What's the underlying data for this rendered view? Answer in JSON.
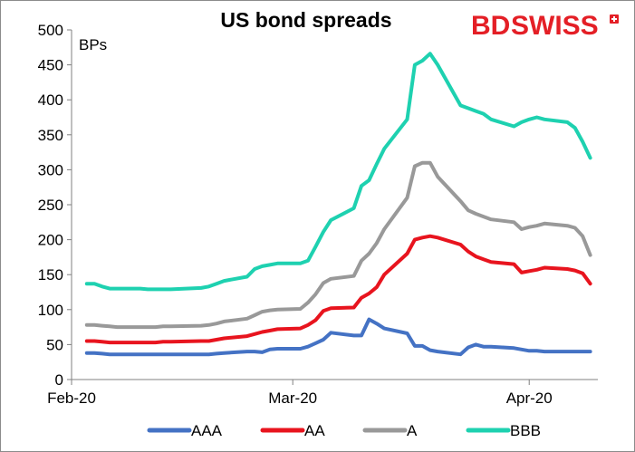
{
  "brand": {
    "logo_text_left": "BD",
    "logo_text_right": "SWISS",
    "logo_color": "#e41f26"
  },
  "chart_data": {
    "type": "line",
    "title": "US bond spreads",
    "unit_label": "BPs",
    "ylim": [
      0,
      500
    ],
    "y_ticks": [
      "0",
      "50",
      "100",
      "150",
      "200",
      "250",
      "300",
      "350",
      "400",
      "450",
      "500"
    ],
    "x_ticks": [
      "Feb-20",
      "Mar-20",
      "Apr-20"
    ],
    "x": [
      "2020-02-03",
      "2020-02-04",
      "2020-02-05",
      "2020-02-06",
      "2020-02-07",
      "2020-02-10",
      "2020-02-11",
      "2020-02-12",
      "2020-02-13",
      "2020-02-14",
      "2020-02-18",
      "2020-02-19",
      "2020-02-20",
      "2020-02-21",
      "2020-02-24",
      "2020-02-25",
      "2020-02-26",
      "2020-02-27",
      "2020-02-28",
      "2020-03-02",
      "2020-03-03",
      "2020-03-04",
      "2020-03-05",
      "2020-03-06",
      "2020-03-09",
      "2020-03-10",
      "2020-03-11",
      "2020-03-12",
      "2020-03-13",
      "2020-03-16",
      "2020-03-17",
      "2020-03-18",
      "2020-03-19",
      "2020-03-20",
      "2020-03-23",
      "2020-03-24",
      "2020-03-25",
      "2020-03-26",
      "2020-03-27",
      "2020-03-30",
      "2020-03-31",
      "2020-04-01",
      "2020-04-02",
      "2020-04-03",
      "2020-04-06",
      "2020-04-07",
      "2020-04-08",
      "2020-04-09"
    ],
    "series": [
      {
        "name": "AAA",
        "color": "#4472c4",
        "values": [
          38,
          38,
          37,
          36,
          36,
          36,
          36,
          36,
          36,
          36,
          36,
          36,
          37,
          38,
          40,
          40,
          39,
          43,
          44,
          44,
          47,
          52,
          57,
          67,
          63,
          63,
          86,
          80,
          73,
          66,
          48,
          48,
          42,
          40,
          36,
          46,
          50,
          47,
          47,
          45,
          43,
          41,
          41,
          40,
          40,
          40,
          40,
          40
        ]
      },
      {
        "name": "AA",
        "color": "#e8141e",
        "values": [
          55,
          55,
          54,
          53,
          53,
          53,
          53,
          53,
          54,
          54,
          55,
          55,
          57,
          59,
          62,
          65,
          68,
          70,
          72,
          73,
          78,
          85,
          98,
          102,
          103,
          117,
          123,
          132,
          150,
          180,
          200,
          203,
          205,
          203,
          193,
          183,
          176,
          172,
          168,
          165,
          153,
          155,
          157,
          160,
          158,
          156,
          152,
          137
        ]
      },
      {
        "name": "A",
        "color": "#999999",
        "values": [
          78,
          78,
          77,
          76,
          75,
          75,
          75,
          75,
          76,
          76,
          77,
          78,
          80,
          83,
          87,
          92,
          97,
          99,
          100,
          101,
          110,
          122,
          138,
          144,
          148,
          170,
          180,
          195,
          215,
          260,
          305,
          310,
          310,
          290,
          255,
          242,
          237,
          233,
          229,
          225,
          215,
          218,
          220,
          223,
          220,
          217,
          205,
          178
        ]
      },
      {
        "name": "BBB",
        "color": "#1ed1b0",
        "values": [
          137,
          137,
          133,
          130,
          130,
          130,
          129,
          129,
          129,
          129,
          131,
          133,
          137,
          141,
          147,
          158,
          162,
          164,
          166,
          166,
          170,
          190,
          211,
          228,
          245,
          277,
          285,
          308,
          330,
          372,
          450,
          456,
          466,
          450,
          392,
          388,
          384,
          380,
          372,
          362,
          368,
          372,
          375,
          372,
          368,
          360,
          340,
          317
        ]
      }
    ],
    "legend_position": "bottom",
    "grid": false
  }
}
